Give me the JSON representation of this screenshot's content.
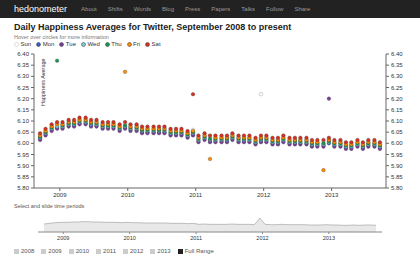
{
  "page": {
    "site": "hedonometer",
    "nav": [
      "About",
      "Shifts",
      "Words",
      "Blog",
      "Press",
      "Papers",
      "Talks",
      "Follow",
      "Share"
    ]
  },
  "overview": {
    "label": "Select and slide time periods",
    "buttons": [
      "2008",
      "2009",
      "2010",
      "2011",
      "2012",
      "2013",
      "Full Range"
    ]
  },
  "chart_data": {
    "type": "scatter",
    "title": "Daily Happiness Averages for Twitter, September 2008 to present",
    "subtitle": "Hover over circles for more information",
    "ylabel": "Happiness Average",
    "x": [
      2008.71,
      2008.79,
      2008.88,
      2008.96,
      2009.04,
      2009.13,
      2009.21,
      2009.29,
      2009.38,
      2009.46,
      2009.54,
      2009.63,
      2009.71,
      2009.79,
      2009.88,
      2009.96,
      2010.04,
      2010.13,
      2010.21,
      2010.29,
      2010.38,
      2010.46,
      2010.54,
      2010.63,
      2010.71,
      2010.79,
      2010.88,
      2010.96,
      2011.04,
      2011.13,
      2011.21,
      2011.29,
      2011.38,
      2011.46,
      2011.54,
      2011.63,
      2011.71,
      2011.79,
      2011.88,
      2011.96,
      2012.04,
      2012.13,
      2012.21,
      2012.29,
      2012.38,
      2012.46,
      2012.54,
      2012.63,
      2012.71,
      2012.79,
      2012.88,
      2012.96,
      2013.04,
      2013.13,
      2013.21,
      2013.29,
      2013.38,
      2013.46,
      2013.54,
      2013.63,
      2013.71
    ],
    "series": [
      {
        "name": "Sun",
        "color": "#bbbbbb",
        "marker": "hollow",
        "values": [
          6.04,
          6.06,
          6.08,
          6.09,
          6.09,
          6.1,
          6.1,
          6.11,
          6.11,
          6.1,
          6.1,
          6.09,
          6.09,
          6.09,
          6.08,
          6.09,
          6.08,
          6.08,
          6.07,
          6.07,
          6.07,
          6.07,
          6.07,
          6.06,
          6.06,
          6.06,
          6.05,
          6.06,
          6.03,
          6.04,
          6.03,
          6.03,
          6.03,
          6.03,
          6.04,
          6.03,
          6.03,
          6.03,
          6.02,
          6.22,
          6.03,
          6.02,
          6.02,
          6.03,
          6.02,
          6.02,
          6.02,
          6.02,
          6.01,
          6.01,
          6.01,
          6.02,
          6.01,
          6.01,
          6.0,
          6.0,
          6.01,
          6.0,
          6.01,
          6.01,
          6.0
        ]
      },
      {
        "name": "Mon",
        "color": "#3a5fcd",
        "marker": "circle",
        "values": [
          6.02,
          6.04,
          6.06,
          6.07,
          6.07,
          6.08,
          6.08,
          6.09,
          6.09,
          6.08,
          6.08,
          6.07,
          6.07,
          6.07,
          6.06,
          6.07,
          6.06,
          6.06,
          6.05,
          6.05,
          6.05,
          6.05,
          6.05,
          6.04,
          6.04,
          6.04,
          6.03,
          6.04,
          6.01,
          6.02,
          6.01,
          6.01,
          6.01,
          6.01,
          6.02,
          6.01,
          6.01,
          6.01,
          6.0,
          6.01,
          6.01,
          6.0,
          6.0,
          6.01,
          6.0,
          6.0,
          6.0,
          6.0,
          5.99,
          5.99,
          5.99,
          6.0,
          5.99,
          5.99,
          5.98,
          5.98,
          5.99,
          5.98,
          5.99,
          5.99,
          5.98
        ]
      },
      {
        "name": "Tue",
        "color": "#7b3f9e",
        "marker": "circle",
        "values": [
          6.015,
          6.035,
          6.055,
          6.065,
          6.065,
          6.075,
          6.075,
          6.085,
          6.085,
          6.075,
          6.075,
          6.065,
          6.065,
          6.065,
          6.055,
          6.065,
          6.055,
          6.055,
          6.045,
          6.045,
          6.045,
          6.045,
          6.045,
          6.035,
          6.035,
          6.035,
          6.025,
          6.035,
          6.005,
          6.015,
          6.005,
          6.005,
          6.005,
          6.005,
          6.015,
          6.005,
          6.005,
          6.005,
          5.995,
          6.005,
          6.005,
          5.995,
          5.995,
          6.005,
          5.995,
          5.995,
          5.995,
          5.995,
          5.985,
          5.985,
          5.985,
          6.2,
          5.985,
          5.985,
          5.975,
          5.975,
          5.985,
          5.975,
          5.985,
          5.985,
          5.975
        ]
      },
      {
        "name": "Wed",
        "color": "#7fcdd4",
        "marker": "circle",
        "values": [
          6.025,
          6.045,
          6.065,
          6.075,
          6.075,
          6.085,
          6.085,
          6.095,
          6.095,
          6.085,
          6.085,
          6.075,
          6.075,
          6.075,
          6.065,
          6.075,
          6.065,
          6.065,
          6.055,
          6.055,
          6.055,
          6.055,
          6.055,
          6.045,
          6.045,
          6.045,
          6.035,
          6.045,
          6.015,
          6.025,
          6.015,
          6.015,
          6.015,
          6.015,
          6.025,
          6.015,
          6.015,
          6.015,
          6.005,
          6.015,
          6.015,
          6.005,
          6.005,
          6.015,
          6.005,
          6.005,
          6.005,
          6.005,
          5.995,
          5.995,
          5.995,
          6.005,
          5.995,
          5.995,
          5.985,
          5.985,
          5.995,
          5.985,
          5.995,
          5.995,
          5.985
        ]
      },
      {
        "name": "Thu",
        "color": "#1a9850",
        "marker": "circle",
        "values": [
          6.03,
          6.05,
          6.07,
          6.37,
          6.08,
          6.09,
          6.09,
          6.1,
          6.1,
          6.09,
          6.09,
          6.08,
          6.08,
          6.08,
          6.07,
          6.08,
          6.07,
          6.07,
          6.06,
          6.06,
          6.06,
          6.06,
          6.06,
          6.05,
          6.05,
          6.05,
          6.04,
          6.05,
          6.02,
          6.03,
          6.02,
          6.02,
          6.02,
          6.02,
          6.03,
          6.02,
          6.02,
          6.02,
          6.01,
          6.02,
          6.02,
          6.01,
          6.01,
          6.02,
          6.01,
          6.01,
          6.01,
          6.01,
          6.0,
          6.0,
          6.0,
          6.01,
          6.0,
          6.0,
          5.99,
          5.99,
          6.0,
          5.99,
          6.0,
          6.0,
          5.99
        ]
      },
      {
        "name": "Fri",
        "color": "#ff8c00",
        "marker": "circle",
        "values": [
          6.035,
          6.055,
          6.075,
          6.085,
          6.085,
          6.095,
          6.095,
          6.105,
          6.105,
          6.095,
          6.095,
          6.085,
          6.085,
          6.085,
          6.075,
          6.32,
          6.075,
          6.075,
          6.065,
          6.065,
          6.065,
          6.065,
          6.065,
          6.055,
          6.055,
          6.055,
          6.045,
          6.055,
          6.025,
          6.035,
          5.93,
          6.025,
          6.025,
          6.025,
          6.035,
          6.025,
          6.025,
          6.025,
          6.015,
          6.025,
          6.025,
          6.015,
          6.015,
          6.025,
          6.015,
          6.015,
          6.015,
          6.015,
          6.005,
          6.005,
          5.88,
          6.015,
          6.005,
          6.005,
          5.995,
          5.995,
          6.005,
          5.995,
          6.005,
          6.005,
          5.995
        ]
      },
      {
        "name": "Sat",
        "color": "#d7301f",
        "marker": "circle",
        "values": [
          6.045,
          6.065,
          6.085,
          6.095,
          6.095,
          6.105,
          6.105,
          6.115,
          6.115,
          6.105,
          6.105,
          6.095,
          6.095,
          6.095,
          6.085,
          6.095,
          6.085,
          6.085,
          6.075,
          6.075,
          6.075,
          6.075,
          6.075,
          6.065,
          6.065,
          6.065,
          6.055,
          6.22,
          6.035,
          6.045,
          6.035,
          6.035,
          6.035,
          6.035,
          6.045,
          6.035,
          6.035,
          6.035,
          6.025,
          6.035,
          6.035,
          6.025,
          6.025,
          6.035,
          6.025,
          6.025,
          6.025,
          6.025,
          6.015,
          6.015,
          6.015,
          6.025,
          6.015,
          6.015,
          6.005,
          6.005,
          6.015,
          6.005,
          6.015,
          6.015,
          6.005
        ]
      }
    ],
    "xlim": [
      2008.62,
      2013.8
    ],
    "xticks": [
      2009,
      2010,
      2011,
      2012,
      2013
    ],
    "ylim": [
      5.8,
      6.4
    ],
    "yticks": [
      {
        "value": 5.8,
        "label": "5.80"
      },
      5.85,
      {
        "value": 5.9,
        "label": "5.90"
      },
      5.95,
      {
        "value": 6,
        "label": "6.00"
      },
      6.05,
      {
        "value": 6.1,
        "label": "6.10"
      },
      6.15,
      {
        "value": 6.2,
        "label": "6.20"
      },
      6.25,
      {
        "value": 6.3,
        "label": "6.30"
      },
      6.35,
      {
        "value": 6.4,
        "label": "6.40"
      }
    ],
    "y2lim": [
      5.8,
      6.4
    ],
    "y2ticks": [
      {
        "value": 5.8,
        "label": "5.80"
      },
      5.85,
      {
        "value": 5.9,
        "label": "5.90"
      },
      5.95,
      {
        "value": 6,
        "label": "6.00"
      },
      6.05,
      {
        "value": 6.1,
        "label": "6.10"
      },
      6.15,
      {
        "value": 6.2,
        "label": "6.20"
      },
      6.25,
      {
        "value": 6.3,
        "label": "6.30"
      },
      6.35,
      {
        "value": 6.4,
        "label": "6.40"
      }
    ],
    "grid": false,
    "legend": "top-left"
  }
}
